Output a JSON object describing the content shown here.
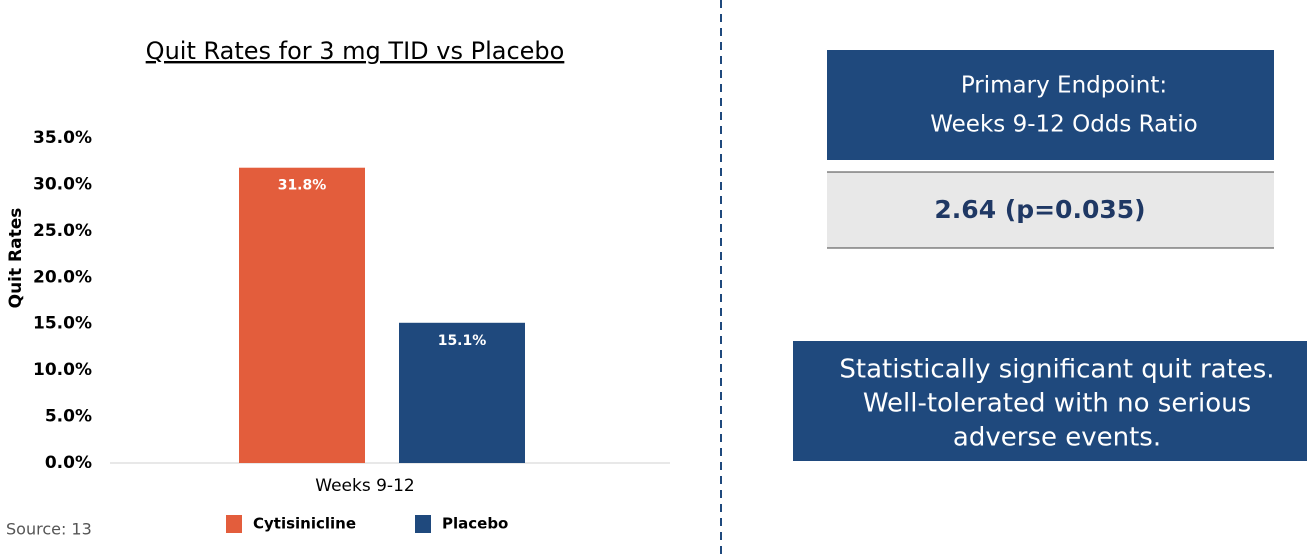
{
  "chart_data": {
    "type": "bar",
    "title": "Quit Rates for 3 mg TID vs Placebo",
    "y_label": "Quit Rates",
    "categories": [
      "Weeks 9-12"
    ],
    "series": [
      {
        "name": "Cytisinicline",
        "color": "#e35d3c",
        "values": [
          31.8
        ],
        "value_labels": [
          "31.8%"
        ]
      },
      {
        "name": "Placebo",
        "color": "#1f497d",
        "values": [
          15.1
        ],
        "value_labels": [
          "15.1%"
        ]
      }
    ],
    "ylim": [
      0,
      35
    ],
    "yticks": [
      {
        "value": 0,
        "label": "0.0%"
      },
      {
        "value": 5,
        "label": "5.0%"
      },
      {
        "value": 10,
        "label": "10.0%"
      },
      {
        "value": 15,
        "label": "15.0%"
      },
      {
        "value": 20,
        "label": "20.0%"
      },
      {
        "value": 25,
        "label": "25.0%"
      },
      {
        "value": 30,
        "label": "30.0%"
      },
      {
        "value": 35,
        "label": "35.0%"
      }
    ],
    "legend": "bottom"
  },
  "endpoint": {
    "title_lines": [
      "Primary Endpoint:",
      "Weeks 9-12 Odds Ratio"
    ],
    "result": "2.64 (p=0.035)"
  },
  "summary": {
    "lines": [
      "Statistically significant quit rates.",
      "Well-tolerated with no serious",
      "adverse events."
    ]
  },
  "source": "Source: 13"
}
